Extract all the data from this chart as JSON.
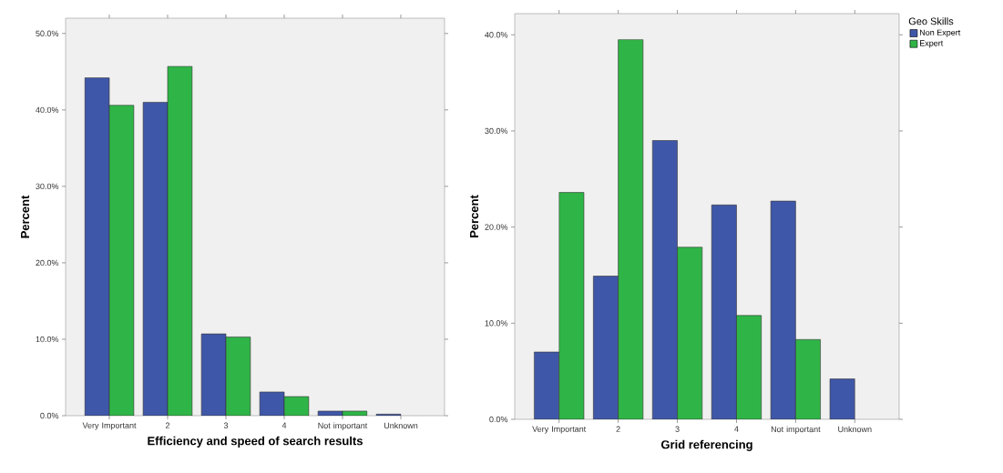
{
  "chart_data": [
    {
      "type": "bar",
      "xlabel": "Efficiency and speed of search results",
      "ylabel": "Percent",
      "categories": [
        "Very Important",
        "2",
        "3",
        "4",
        "Not important",
        "Unknown"
      ],
      "series": [
        {
          "color": "#3f57a8",
          "values": [
            44.2,
            41.0,
            10.7,
            3.1,
            0.6,
            0.2
          ]
        },
        {
          "color": "#2fb547",
          "values": [
            40.6,
            45.7,
            10.3,
            2.5,
            0.6,
            null
          ]
        }
      ],
      "ylim": [
        0,
        52
      ],
      "yticks": [
        {
          "value": 0,
          "label": "0.0%"
        },
        {
          "value": 10,
          "label": "10.0%"
        },
        {
          "value": 20,
          "label": "20.0%"
        },
        {
          "value": 30,
          "label": "30.0%"
        },
        {
          "value": 40,
          "label": "40.0%"
        },
        {
          "value": 50,
          "label": "50.0%"
        }
      ]
    },
    {
      "type": "bar",
      "xlabel": "Grid referencing",
      "ylabel": "Percent",
      "legend_title": "Geo Skills",
      "legend": "right",
      "categories": [
        "Very Important",
        "2",
        "3",
        "4",
        "Not important",
        "Unknown"
      ],
      "series": [
        {
          "name": "Non Expert",
          "color": "#3f57a8",
          "values": [
            7.0,
            14.9,
            29.0,
            22.3,
            22.7,
            4.2
          ]
        },
        {
          "name": "Expert",
          "color": "#2fb547",
          "values": [
            23.6,
            39.5,
            17.9,
            10.8,
            8.3,
            null
          ]
        }
      ],
      "ylim": [
        0,
        42.2
      ],
      "yticks": [
        {
          "value": 0,
          "label": "0.0%"
        },
        {
          "value": 10,
          "label": "10.0%"
        },
        {
          "value": 20,
          "label": "20.0%"
        },
        {
          "value": 30,
          "label": "30.0%"
        },
        {
          "value": 40,
          "label": "40.0%"
        }
      ]
    }
  ]
}
